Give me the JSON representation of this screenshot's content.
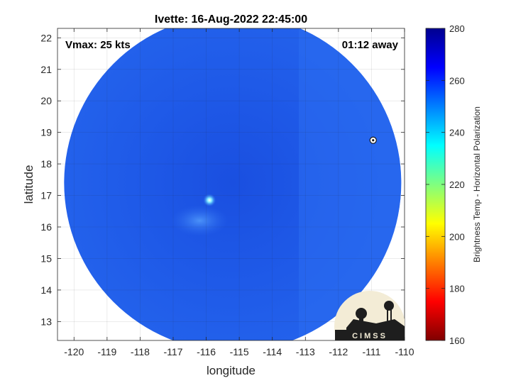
{
  "chart_data": {
    "type": "heatmap",
    "title": "Ivette: 16-Aug-2022 22:45:00",
    "annotations": {
      "vmax": "Vmax: 25 kts",
      "age": "01:12 away"
    },
    "xlabel": "longitude",
    "ylabel": "latitude",
    "xlim": [
      -120.5,
      -110
    ],
    "ylim": [
      12.4,
      22.3
    ],
    "xticks": [
      -120,
      -119,
      -118,
      -117,
      -116,
      -115,
      -114,
      -113,
      -112,
      -111,
      -110
    ],
    "xtick_labels": [
      "-120",
      "-119",
      "-118",
      "-117",
      "-116",
      "-115",
      "-114",
      "-113",
      "-112",
      "-111",
      "-110"
    ],
    "yticks": [
      13,
      14,
      15,
      16,
      17,
      18,
      19,
      20,
      21,
      22
    ],
    "ytick_labels": [
      "13",
      "14",
      "15",
      "16",
      "17",
      "18",
      "19",
      "20",
      "21",
      "22"
    ],
    "grid": true,
    "swath": {
      "center_lon": -115.2,
      "center_lat": 17.4,
      "edge_lon_min": -120.3,
      "edge_lon_max": -110.1
    },
    "features": [
      {
        "label": "storm center warm spot",
        "lon": -115.9,
        "lat": 16.85,
        "value": 240
      },
      {
        "label": "isolated cell",
        "lon": -110.95,
        "lat": 18.75,
        "value": 245
      }
    ],
    "typical_value": 262,
    "colorbar": {
      "label": "Brightness Temp - Horizontal Polarization",
      "min": 160,
      "max": 280,
      "ticks": [
        160,
        180,
        200,
        220,
        240,
        260,
        280
      ],
      "tick_labels": [
        "160",
        "180",
        "200",
        "220",
        "240",
        "260",
        "280"
      ],
      "colormap": "jet"
    }
  },
  "logo": {
    "text": "CIMSS"
  },
  "colors": {
    "dominant_fill": "#1f58e6",
    "background": "#ffffff"
  }
}
